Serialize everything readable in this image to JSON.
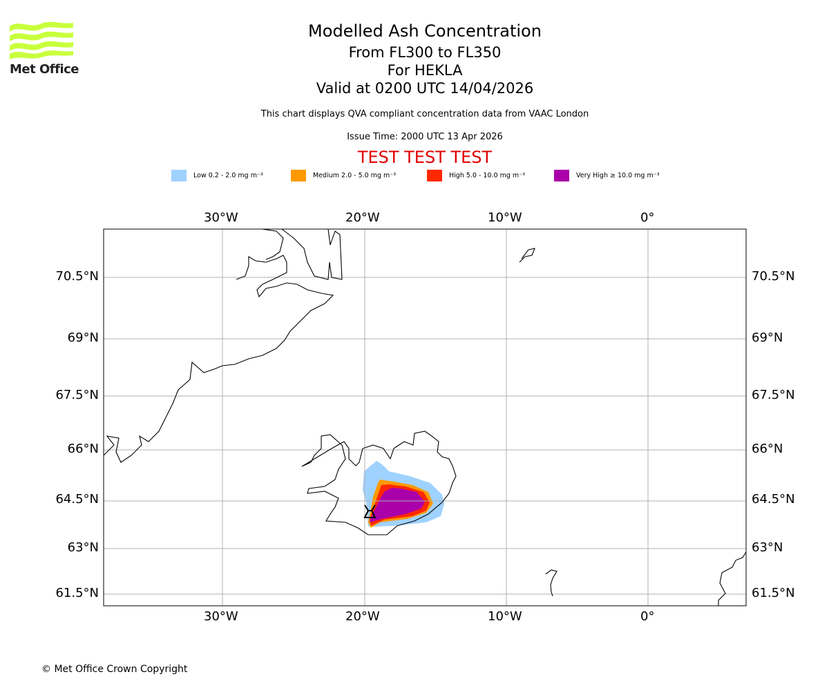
{
  "header": {
    "logo_text": "Met Office",
    "title": "Modelled Ash Concentration",
    "levels": "From FL300 to FL350",
    "volcano": "For HEKLA",
    "valid": "Valid at 0200 UTC 14/04/2026",
    "description": "This chart displays QVA compliant concentration data from VAAC London",
    "issue_time": "Issue Time: 2000 UTC 13 Apr 2026",
    "test_banner": "TEST TEST TEST"
  },
  "legend": [
    {
      "label": "Low 0.2 - 2.0 mg m⁻³",
      "color": "#a0d2ff"
    },
    {
      "label": "Medium 2.0 - 5.0 mg m⁻³",
      "color": "#ff9900"
    },
    {
      "label": "High 5.0 - 10.0 mg m⁻³",
      "color": "#ff2800"
    },
    {
      "label": "Very High ≥ 10.0 mg m⁻³",
      "color": "#aa00aa"
    }
  ],
  "map": {
    "lon_labels": [
      "30°W",
      "20°W",
      "10°W",
      "0°"
    ],
    "lat_labels": [
      "70.5°N",
      "69°N",
      "67.5°N",
      "66°N",
      "64.5°N",
      "63°N",
      "61.5°N"
    ],
    "volcano_symbol": "volcano-icon"
  },
  "footer": {
    "copyright": "© Met Office Crown Copyright"
  }
}
